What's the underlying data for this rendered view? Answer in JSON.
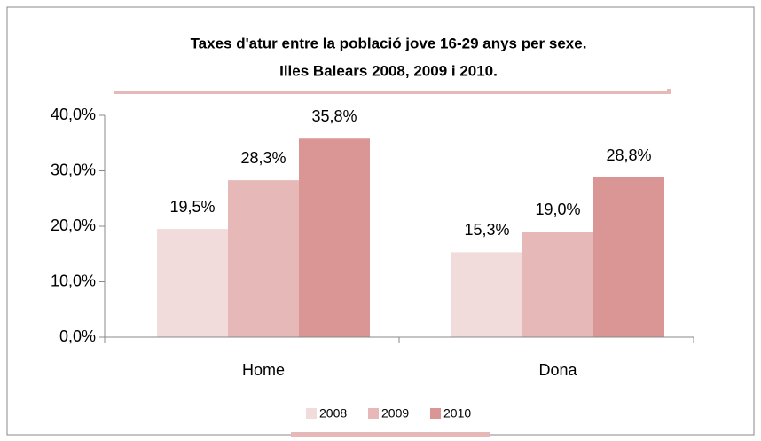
{
  "chart_data": {
    "type": "bar",
    "title": [
      "Taxes d'atur entre la població jove 16-29 anys per sexe.",
      "Illes Balears 2008, 2009 i 2010."
    ],
    "categories": [
      "Home",
      "Dona"
    ],
    "series": [
      {
        "name": "2008",
        "color": "#f2dcdb",
        "values": [
          19.5,
          15.3
        ],
        "value_labels": [
          "19,5%",
          "15,3%"
        ]
      },
      {
        "name": "2009",
        "color": "#e6b9b8",
        "values": [
          28.3,
          19.0
        ],
        "value_labels": [
          "28,3%",
          "19,0%"
        ]
      },
      {
        "name": "2010",
        "color": "#d99694",
        "values": [
          35.8,
          28.8
        ],
        "value_labels": [
          "35,8%",
          "28,8%"
        ]
      }
    ],
    "ylim": [
      0,
      40
    ],
    "yticks": [
      {
        "value": 0,
        "label": "0,0%"
      },
      {
        "value": 10,
        "label": "10,0%"
      },
      {
        "value": 20,
        "label": "20,0%"
      },
      {
        "value": 30,
        "label": "30,0%"
      },
      {
        "value": 40,
        "label": "40,0%"
      }
    ],
    "legend": "bottom"
  }
}
